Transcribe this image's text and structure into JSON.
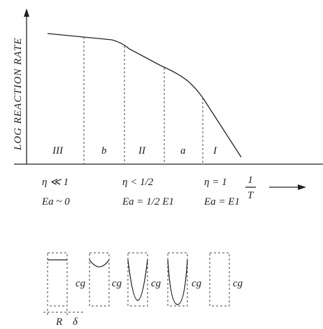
{
  "axes": {
    "y_label": "LOG REACTION RATE",
    "x_label_numerator": "1",
    "x_label_denominator": "T"
  },
  "regions": [
    "III",
    "b",
    "II",
    "a",
    "I"
  ],
  "conditions": [
    {
      "eta": "η ≪ 1",
      "energy": "Ea ~ 0"
    },
    {
      "eta": "η < 1/2",
      "energy": "Ea = 1/2 E1"
    },
    {
      "eta": "η = 1",
      "energy": "Ea = E1"
    }
  ],
  "profiles": [
    "cg",
    "cg",
    "cg",
    "cg",
    "cg"
  ],
  "dimensions": [
    "R",
    "δ"
  ]
}
